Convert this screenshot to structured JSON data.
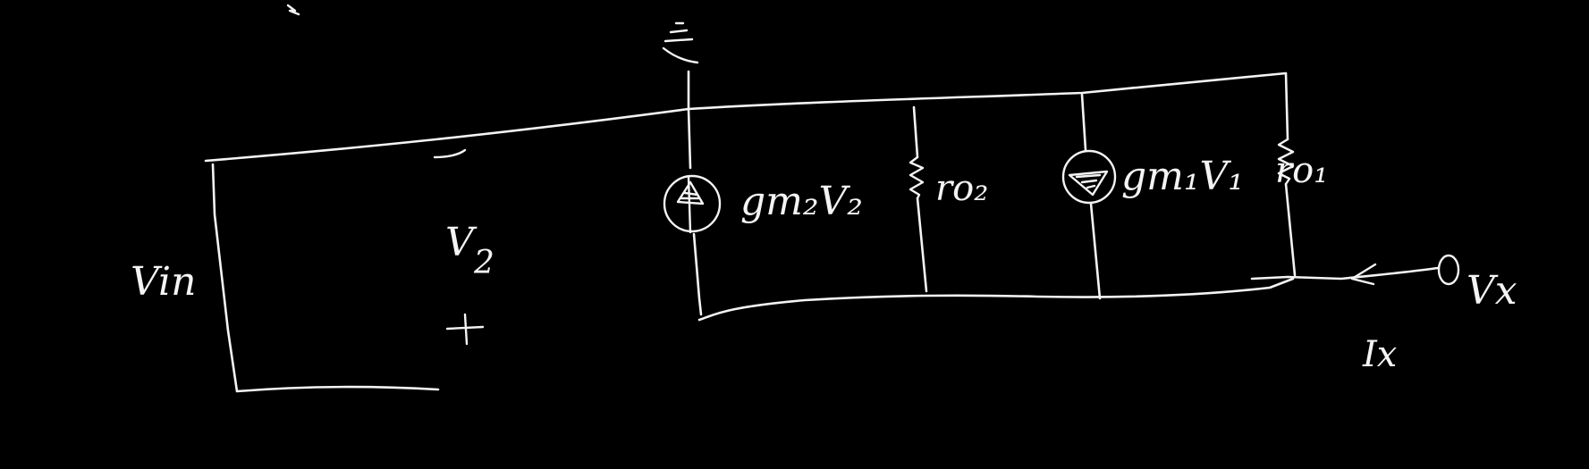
{
  "labels": {
    "vin": "Vin",
    "v2": "V",
    "v2_sub": "2",
    "minus": "–",
    "plus": "+",
    "gm2v2": "gm₂V₂",
    "ro2": "ro₂",
    "gm1v1": "gm₁V₁",
    "ro1": "ro₁",
    "vx": "Vx",
    "ix": "Ix"
  },
  "colors": {
    "background": "#000000",
    "ink": "#f4f4f4"
  },
  "icons": [
    "ground-icon",
    "current-source-icon",
    "resistor-icon",
    "terminal-icon",
    "arrow-icon"
  ]
}
